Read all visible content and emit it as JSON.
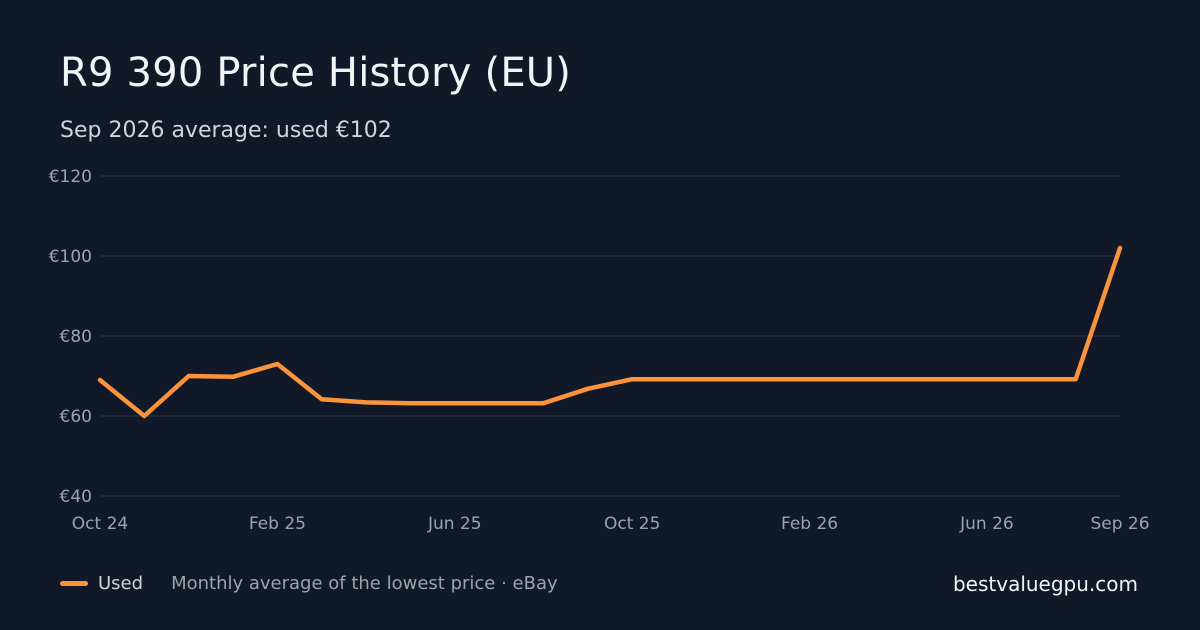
{
  "title": "R9 390 Price History (EU)",
  "subtitle": "Sep 2026 average: used €102",
  "legend": {
    "label": "Used",
    "note": "Monthly average of the lowest price · eBay"
  },
  "site": "bestvaluegpu.com",
  "colors": {
    "background": "#111827",
    "line": "#fb923c",
    "grid": "#263040",
    "tick": "#9ca3af"
  },
  "chart_data": {
    "type": "line",
    "title": "R9 390 Price History (EU)",
    "xlabel": "",
    "ylabel": "",
    "ylim": [
      40,
      120
    ],
    "y_ticks": [
      40,
      60,
      80,
      100,
      120
    ],
    "y_tick_labels": [
      "€40",
      "€60",
      "€80",
      "€100",
      "€120"
    ],
    "x_tick_labels": [
      "Oct 24",
      "Feb 25",
      "Jun 25",
      "Oct 25",
      "Feb 26",
      "Jun 26",
      "Sep 26"
    ],
    "x_tick_months": [
      "2024-10",
      "2025-02",
      "2025-06",
      "2025-10",
      "2026-02",
      "2026-06",
      "2026-09"
    ],
    "grid": true,
    "legend_position": "bottom-left",
    "series": [
      {
        "name": "Used",
        "x": [
          "2024-10",
          "2024-11",
          "2024-12",
          "2025-01",
          "2025-02",
          "2025-03",
          "2025-04",
          "2025-05",
          "2025-06",
          "2025-07",
          "2025-08",
          "2025-09",
          "2025-10",
          "2025-11",
          "2025-12",
          "2026-01",
          "2026-02",
          "2026-03",
          "2026-04",
          "2026-05",
          "2026-06",
          "2026-07",
          "2026-08",
          "2026-09"
        ],
        "values": [
          69,
          60,
          70,
          69.8,
          73,
          64.2,
          63.4,
          63.2,
          63.2,
          63.2,
          63.2,
          66.8,
          69.2,
          69.2,
          69.2,
          69.2,
          69.2,
          69.2,
          69.2,
          69.2,
          69.2,
          69.2,
          69.2,
          102
        ]
      }
    ]
  }
}
